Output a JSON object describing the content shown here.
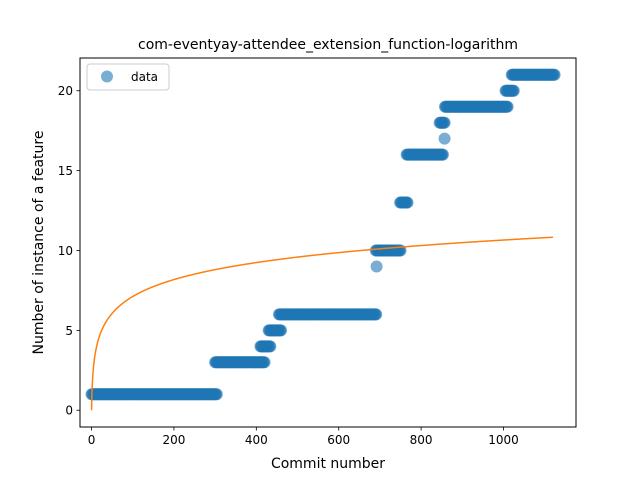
{
  "chart_data": {
    "type": "scatter",
    "title": "com-eventyay-attendee_extension_function-logarithm",
    "xlabel": "Commit number",
    "ylabel": "Number of instance of a feature",
    "xlim": [
      -28,
      1176
    ],
    "ylim": [
      -1.05,
      22.05
    ],
    "xticks": [
      0,
      200,
      400,
      600,
      800,
      1000
    ],
    "yticks": [
      0,
      5,
      10,
      15,
      20
    ],
    "grid": false,
    "legend": {
      "position": "top-left",
      "entries": [
        "data"
      ]
    },
    "colors": {
      "data": "#1f77b4",
      "fit": "#ff7f0e"
    },
    "series": [
      {
        "name": "data",
        "kind": "scatter",
        "segments": [
          {
            "x_start": 0,
            "x_end": 305,
            "y": 1
          },
          {
            "x_start": 300,
            "x_end": 420,
            "y": 3
          },
          {
            "x_start": 410,
            "x_end": 435,
            "y": 4
          },
          {
            "x_start": 430,
            "x_end": 460,
            "y": 5
          },
          {
            "x_start": 455,
            "x_end": 692,
            "y": 6
          },
          {
            "x_start": 690,
            "x_end": 751,
            "y": 10
          },
          {
            "x_start": 749,
            "x_end": 767,
            "y": 13
          },
          {
            "x_start": 765,
            "x_end": 853,
            "y": 16
          },
          {
            "x_start": 845,
            "x_end": 857,
            "y": 18
          },
          {
            "x_start": 858,
            "x_end": 1010,
            "y": 19
          },
          {
            "x_start": 1005,
            "x_end": 1025,
            "y": 20
          },
          {
            "x_start": 1020,
            "x_end": 1125,
            "y": 21
          }
        ],
        "points": [
          {
            "x": 692,
            "y": 9
          },
          {
            "x": 857,
            "y": 17
          }
        ]
      },
      {
        "kind": "line",
        "function": "logarithm",
        "a": 1.5421,
        "x_range": [
          0,
          1120
        ]
      }
    ]
  }
}
